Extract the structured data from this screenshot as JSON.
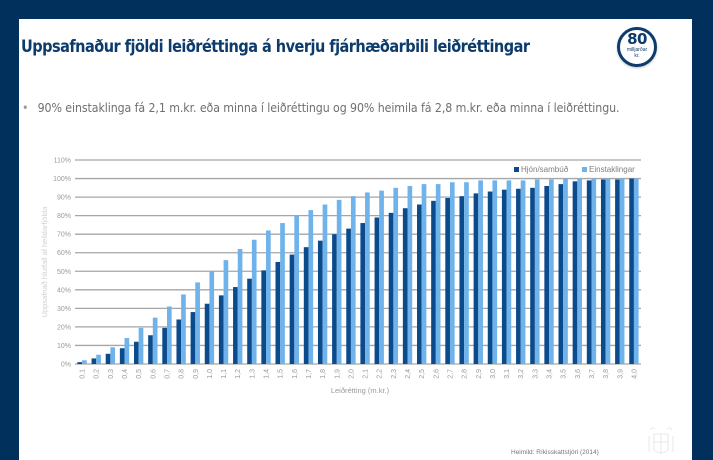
{
  "slide": {
    "title": "Uppsafnaður fjöldi leiðréttinga á hverju fjárhæðarbili leiðréttingar",
    "badge": {
      "number": "80",
      "line1": "milljarðar",
      "line2": "kr."
    },
    "bullet": "90% einstaklinga fá 2,1 m.kr. eða minna í leiðréttingu og 90% heimila fá 2,8 m.kr. eða minna í leiðréttingu.",
    "bullet_marker": "•",
    "source": "Heimild: Ríkisskattstjóri (2014)",
    "colors": {
      "frame": "#02305c",
      "title": "#0d3c6c",
      "series_dark": "#0b4b8c",
      "series_light": "#6fb3ea",
      "grid": "#a6a6a6"
    }
  },
  "chart_data": {
    "type": "bar",
    "title": "",
    "xlabel": "Leiðrétting (m.kr.)",
    "ylabel": "Uppsafnað hlutfall af heildarfjölda",
    "ylim": [
      0,
      110
    ],
    "yticks": [
      "0%",
      "10%",
      "20%",
      "30%",
      "40%",
      "50%",
      "60%",
      "70%",
      "80%",
      "90%",
      "100%",
      "110%"
    ],
    "grid": true,
    "legend_position": "top-right",
    "categories": [
      "0,1",
      "0,2",
      "0,3",
      "0,4",
      "0,5",
      "0,6",
      "0,7",
      "0,8",
      "0,9",
      "1,0",
      "1,1",
      "1,2",
      "1,3",
      "1,4",
      "1,5",
      "1,6",
      "1,7",
      "1,8",
      "1,9",
      "2,0",
      "2,1",
      "2,2",
      "2,3",
      "2,4",
      "2,5",
      "2,6",
      "2,7",
      "2,8",
      "2,9",
      "3,0",
      "3,1",
      "3,2",
      "3,3",
      "3,4",
      "3,5",
      "3,6",
      "3,7",
      "3,8",
      "3,9",
      "4,0"
    ],
    "series": [
      {
        "name": "Hjón/sambúð",
        "values": [
          1,
          3,
          5.5,
          8.5,
          12,
          15.5,
          19.5,
          24,
          28,
          32.5,
          37,
          41.5,
          46,
          50.5,
          55,
          59,
          63,
          66.5,
          70,
          73,
          76,
          79,
          81.5,
          84,
          86,
          88,
          89.5,
          90.5,
          92,
          93,
          94,
          94.5,
          95,
          96,
          97,
          98.5,
          99,
          99.5,
          99.5,
          100
        ]
      },
      {
        "name": "Einstaklingar",
        "values": [
          2,
          5,
          9,
          14,
          19.5,
          25,
          31,
          37.5,
          44,
          50,
          56,
          62,
          67,
          72,
          76,
          80,
          83,
          86,
          88.5,
          90.5,
          92.5,
          93.5,
          95,
          96,
          97,
          97,
          98,
          98,
          99,
          99,
          99,
          99,
          99.5,
          99.5,
          100,
          100,
          100,
          100,
          100,
          100
        ]
      }
    ]
  }
}
